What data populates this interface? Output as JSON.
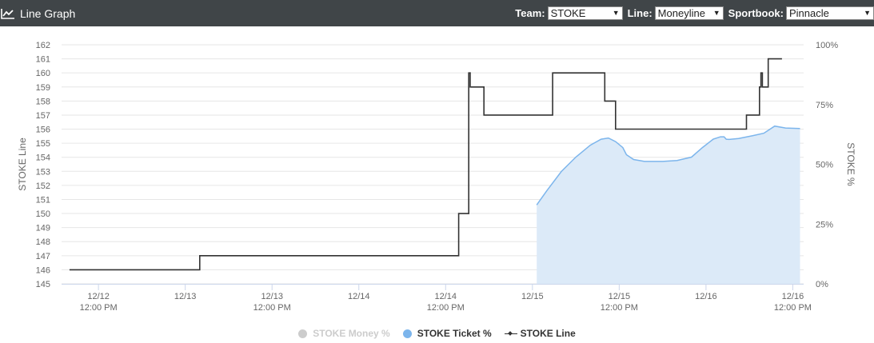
{
  "header": {
    "title": "Line Graph",
    "icon": "line-chart-icon",
    "team_label": "Team:",
    "team_value": "STOKE",
    "line_label": "Line:",
    "line_value": "Moneyline",
    "book_label": "Sportbook:",
    "book_value": "Pinnacle"
  },
  "chart_data": {
    "type": "line",
    "title": "",
    "ylabel": "STOKE Line",
    "y2label": "STOKE %",
    "ylim": [
      145,
      162
    ],
    "y2lim": [
      0,
      100
    ],
    "y_ticks": [
      "145",
      "146",
      "147",
      "148",
      "149",
      "150",
      "151",
      "152",
      "153",
      "154",
      "155",
      "156",
      "157",
      "158",
      "159",
      "160",
      "161",
      "162"
    ],
    "y2_ticks": [
      "0%",
      "25%",
      "50%",
      "75%",
      "100%"
    ],
    "x_ticks": [
      {
        "t": 0,
        "l1": "12/12",
        "l2": "12:00 PM"
      },
      {
        "t": 12,
        "l1": "12/13",
        "l2": ""
      },
      {
        "t": 24,
        "l1": "12/13",
        "l2": "12:00 PM"
      },
      {
        "t": 36,
        "l1": "12/14",
        "l2": ""
      },
      {
        "t": 48,
        "l1": "12/14",
        "l2": "12:00 PM"
      },
      {
        "t": 60,
        "l1": "12/15",
        "l2": ""
      },
      {
        "t": 72,
        "l1": "12/15",
        "l2": "12:00 PM"
      },
      {
        "t": 84,
        "l1": "12/16",
        "l2": ""
      },
      {
        "t": 96,
        "l1": "12/16",
        "l2": "12:00 PM"
      }
    ],
    "xlim": [
      -5.1,
      97.5
    ],
    "grid": true,
    "legend_position": "bottom",
    "series": [
      {
        "name": "STOKE Money %",
        "axis": "right",
        "color": "#cccccc",
        "visible": false,
        "points": []
      },
      {
        "name": "STOKE Ticket %",
        "axis": "right",
        "color": "#7cb5ec",
        "fill": "#dceaf8",
        "style": "area",
        "points": [
          [
            60.6,
            33
          ],
          [
            62,
            39
          ],
          [
            64,
            47
          ],
          [
            66,
            53
          ],
          [
            68,
            58
          ],
          [
            69.5,
            60.5
          ],
          [
            70.5,
            61
          ],
          [
            71.5,
            59.5
          ],
          [
            72.5,
            57
          ],
          [
            73,
            54
          ],
          [
            74,
            52
          ],
          [
            75.5,
            51.2
          ],
          [
            78,
            51.2
          ],
          [
            80,
            51.6
          ],
          [
            82,
            53
          ],
          [
            83.5,
            57
          ],
          [
            85,
            60.5
          ],
          [
            86,
            61.5
          ],
          [
            86.5,
            61.5
          ],
          [
            86.8,
            60.5
          ],
          [
            87.2,
            60.4
          ],
          [
            88.5,
            60.8
          ],
          [
            90.5,
            62
          ],
          [
            92,
            63
          ],
          [
            93.5,
            66
          ],
          [
            95,
            65.2
          ],
          [
            97,
            65
          ]
        ]
      },
      {
        "name": "STOKE Line",
        "axis": "left",
        "color": "#333333",
        "style": "step",
        "points": [
          [
            -4,
            146
          ],
          [
            14,
            146
          ],
          [
            14,
            147
          ],
          [
            49.8,
            147
          ],
          [
            49.8,
            150
          ],
          [
            51.2,
            150
          ],
          [
            51.2,
            160
          ],
          [
            51.4,
            160
          ],
          [
            51.4,
            159
          ],
          [
            53.3,
            159
          ],
          [
            53.3,
            157
          ],
          [
            62.8,
            157
          ],
          [
            62.8,
            160
          ],
          [
            70,
            160
          ],
          [
            70,
            158
          ],
          [
            71.5,
            158
          ],
          [
            71.5,
            156
          ],
          [
            89.6,
            156
          ],
          [
            89.6,
            157
          ],
          [
            91.4,
            157
          ],
          [
            91.4,
            159
          ],
          [
            91.6,
            159
          ],
          [
            91.6,
            160
          ],
          [
            91.8,
            160
          ],
          [
            91.8,
            159
          ],
          [
            92.6,
            159
          ],
          [
            92.6,
            161
          ],
          [
            94.5,
            161
          ]
        ]
      }
    ]
  }
}
